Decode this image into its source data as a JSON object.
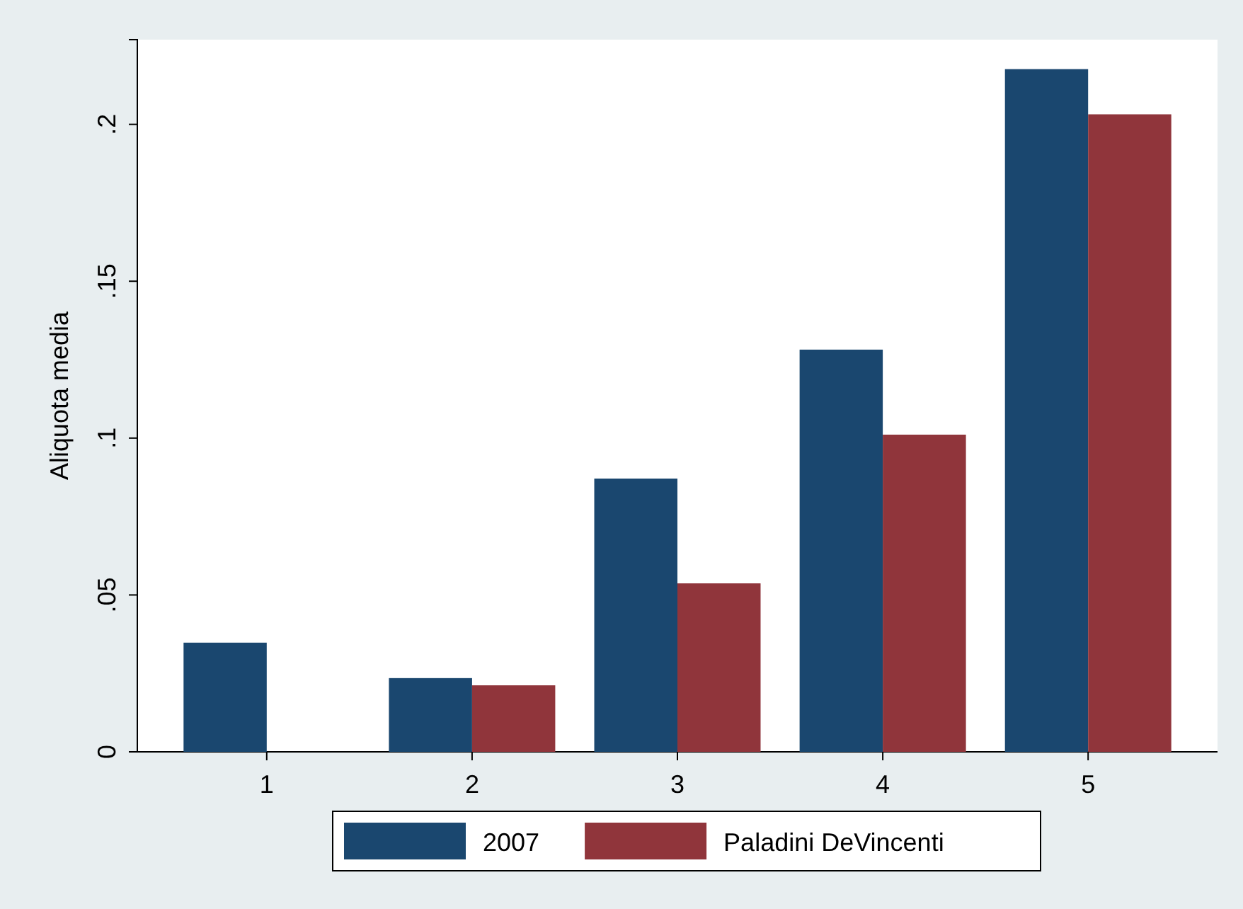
{
  "chart_data": {
    "type": "bar",
    "ylabel": "Aliquota media",
    "categories": [
      "1",
      "2",
      "3",
      "4",
      "5"
    ],
    "series": [
      {
        "name": "2007",
        "color": "#1a476f",
        "values": [
          0.0348,
          0.0235,
          0.0871,
          0.1282,
          0.2176
        ]
      },
      {
        "name": "Paladini DeVincenti",
        "color": "#90353b",
        "values": [
          null,
          0.0212,
          0.0537,
          0.1011,
          0.2032
        ]
      }
    ],
    "ylim": [
      0,
      0.227
    ],
    "yticks": [
      0,
      {
        "value": 0.05,
        "label": ".05"
      },
      {
        "value": 0.1,
        "label": ".1"
      },
      {
        "value": 0.15,
        "label": ".15"
      },
      {
        "value": 0.2,
        "label": ".2"
      }
    ],
    "grid": false,
    "legend": "bottom"
  }
}
